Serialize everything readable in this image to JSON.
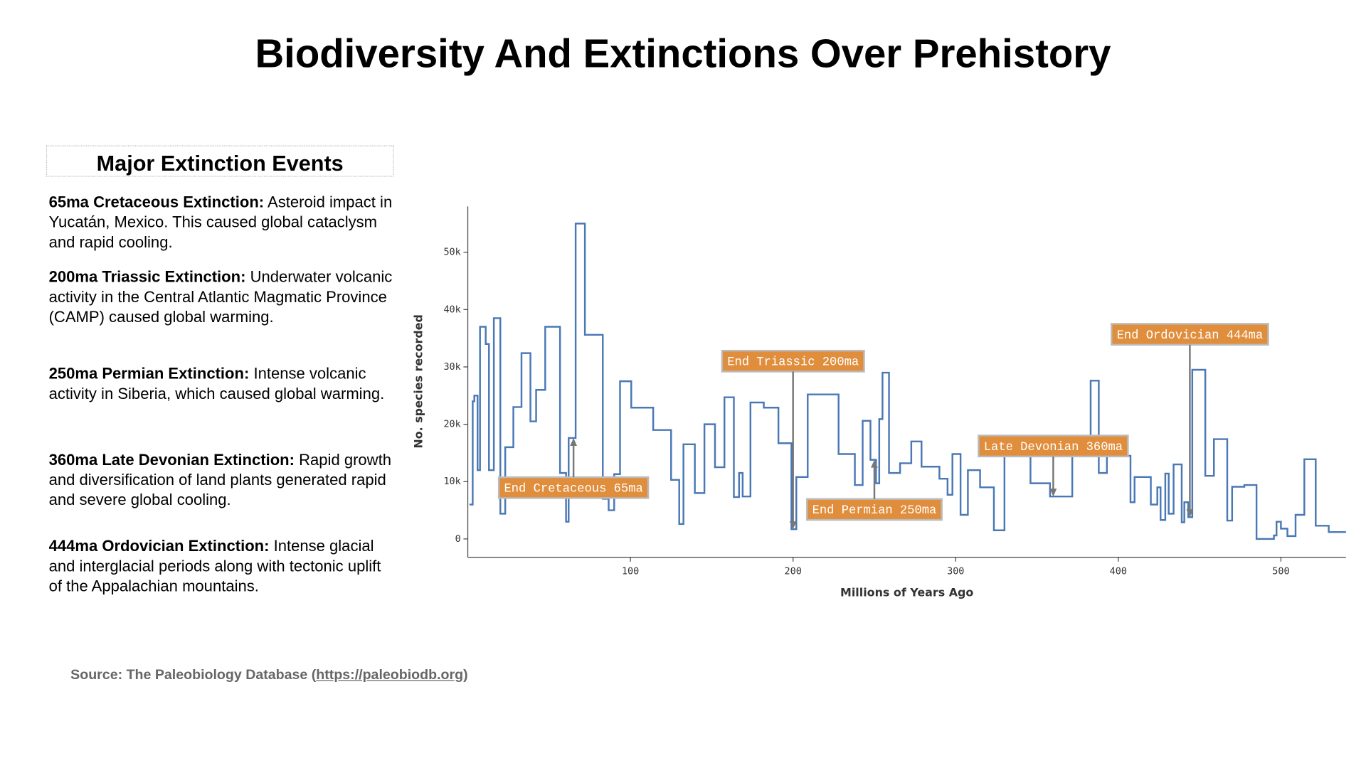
{
  "page": {
    "title": "Biodiversity And Extinctions Over Prehistory",
    "sidebar": {
      "heading": "Major Extinction Events",
      "events": [
        {
          "title": "65ma Cretaceous Extinction:",
          "text": "Asteroid impact in Yucatán, Mexico. This caused global cataclysm and rapid cooling."
        },
        {
          "title": "200ma Triassic Extinction:",
          "text": "Underwater volcanic activity in the Central Atlantic Magmatic Province (CAMP) caused global warming."
        },
        {
          "title": "250ma Permian Extinction:",
          "text": "Intense volcanic activity in Siberia, which caused global warming."
        },
        {
          "title": "360ma Late Devonian Extinction:",
          "text": "Rapid growth and diversification of land plants generated rapid and severe global cooling."
        },
        {
          "title": "444ma Ordovician Extinction:",
          "text": "Intense glacial and interglacial periods along with tectonic uplift of the Appalachian mountains."
        }
      ]
    },
    "source": {
      "prefix": "Source: The Paleobiology Database (",
      "link": "https://paleobiodb.org",
      "suffix": ")"
    }
  },
  "chart_data": {
    "type": "line",
    "line_shape": "hv",
    "color": "#4a78b5",
    "x_label": "Millions of Years Ago",
    "y_label": "No. species recorded",
    "x": [
      1,
      3,
      4,
      6,
      7.5,
      11,
      13,
      16,
      20,
      23,
      28,
      33,
      38.5,
      42,
      47.6,
      56.7,
      60.4,
      62,
      66.3,
      72,
      83,
      86.6,
      90,
      93.6,
      100.5,
      114,
      125,
      130,
      132.6,
      139.6,
      145.5,
      152,
      157.8,
      163.6,
      166.8,
      169,
      173.8,
      182,
      191,
      199,
      202,
      209,
      228,
      238,
      242.8,
      247.6,
      251,
      253,
      255,
      259,
      265.8,
      272.7,
      279,
      290,
      295,
      298,
      303,
      307.5,
      315,
      323.5,
      330,
      346,
      358,
      371.7,
      383,
      388,
      393,
      407.5,
      410,
      420,
      424,
      426,
      428.9,
      431,
      434,
      439,
      440.6,
      443,
      445.5,
      453.5,
      458.8,
      467,
      470,
      477.5,
      485,
      495.7,
      497.3,
      500,
      504,
      509,
      514.4,
      521.4,
      529.4,
      540
    ],
    "values": [
      6000,
      24000,
      25000,
      12000,
      37000,
      34000,
      12000,
      38500,
      4400,
      16000,
      23000,
      32400,
      20500,
      26000,
      37000,
      11500,
      3000,
      17600,
      55000,
      35600,
      7000,
      5000,
      11300,
      27500,
      22900,
      19000,
      10300,
      2600,
      16500,
      8000,
      20000,
      12500,
      24700,
      7300,
      11500,
      7400,
      23800,
      22900,
      16700,
      1700,
      10800,
      25200,
      14800,
      9400,
      20600,
      13800,
      9700,
      20900,
      29000,
      11500,
      13200,
      17000,
      12600,
      10500,
      7700,
      14800,
      4200,
      12000,
      9000,
      1500,
      17000,
      9700,
      7400,
      14800,
      27600,
      11500,
      14500,
      6400,
      10800,
      6000,
      9000,
      3300,
      11400,
      4400,
      13000,
      2900,
      6400,
      3800,
      29500,
      11000,
      17400,
      3200,
      9100,
      9400,
      0,
      600,
      3000,
      1800,
      500,
      4200,
      13900,
      2300,
      1200,
      1200
    ],
    "xlim": [
      0,
      540
    ],
    "ylim": [
      -3200,
      58000
    ],
    "xticks": [
      100,
      200,
      300,
      400,
      500
    ],
    "yticks": [
      0,
      {
        "value": 10000,
        "label": "10k"
      },
      {
        "value": 20000,
        "label": "20k"
      },
      {
        "value": 30000,
        "label": "30k"
      },
      {
        "value": 40000,
        "label": "40k"
      },
      {
        "value": 50000,
        "label": "50k"
      }
    ],
    "grid": false,
    "annotations": [
      {
        "text": "End Cretaceous 65ma",
        "x": 65,
        "y": 17600
      },
      {
        "text": "End Triassic 200ma",
        "x": 200,
        "y": 1700
      },
      {
        "text": "End Permian 250ma",
        "x": 250,
        "y": 13800
      },
      {
        "text": "Late Devonian 360ma",
        "x": 360,
        "y": 7400
      },
      {
        "text": "End Ordovician 444ma",
        "x": 444,
        "y": 3800
      }
    ],
    "annotation_color": "#e08d3c"
  }
}
